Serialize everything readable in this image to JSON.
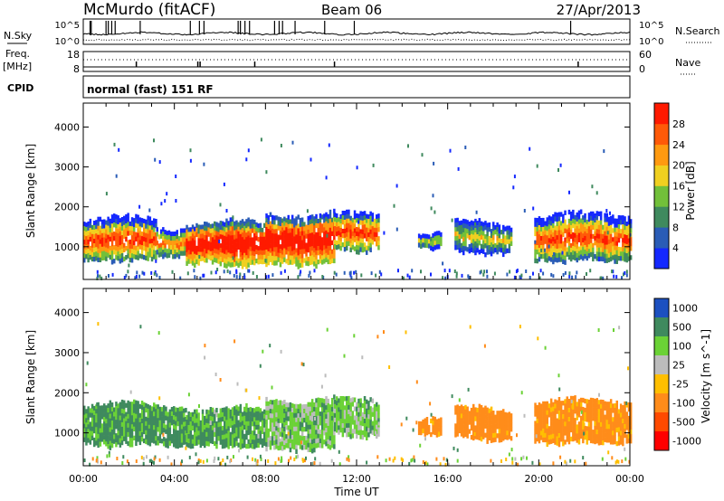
{
  "header": {
    "station": "McMurdo (fitACF)",
    "beam": "Beam 06",
    "date": "27/Apr/2013"
  },
  "mini_panels": {
    "nsky_label": "N.Sky",
    "nsearch_label": "N.Search",
    "noise_ticks": [
      "10^5",
      "10^0"
    ],
    "freq_label": "Freq.",
    "freq_unit": "[MHz]",
    "freq_ticks": [
      "18",
      "8"
    ],
    "nave_label": "Nave",
    "nave_ticks": [
      "60",
      "0"
    ],
    "cpid_label": "CPID",
    "cpid_text": "normal (fast) 151 RF"
  },
  "colors": {
    "power": [
      "#1428ff",
      "#2a5cb6",
      "#3f8a5e",
      "#72c03a",
      "#f0d020",
      "#ff9a10",
      "#ff5a08",
      "#ff1a00"
    ],
    "velocity": [
      "#ff0000",
      "#ff4a00",
      "#ff8c1a",
      "#ffbf00",
      "#bcbcbc",
      "#6bd236",
      "#3f8a5e",
      "#1c50c0"
    ]
  },
  "chart_data": [
    {
      "type": "heatmap",
      "title": "",
      "xlabel": "",
      "ylabel": "Slant Range [km]",
      "x_ticks": [
        "00:00",
        "04:00",
        "08:00",
        "12:00",
        "16:00",
        "20:00",
        "00:00"
      ],
      "x_range_hours": [
        0,
        24
      ],
      "ylim": [
        180,
        4600
      ],
      "y_ticks": [
        1000,
        2000,
        3000,
        4000
      ],
      "colorbar": {
        "label": "Power [dB]",
        "ticks": [
          4,
          8,
          12,
          16,
          20,
          24,
          28
        ],
        "range": [
          0,
          32
        ]
      },
      "echo_regions": [
        {
          "t_start": 0.0,
          "t_end": 3.2,
          "range_low_km": 700,
          "range_high_km": 1700,
          "typical_dB": 18,
          "peak_dB": 26
        },
        {
          "t_start": 3.2,
          "t_end": 4.5,
          "range_low_km": 850,
          "range_high_km": 1500,
          "typical_dB": 16,
          "peak_dB": 22
        },
        {
          "t_start": 4.5,
          "t_end": 8.0,
          "range_low_km": 600,
          "range_high_km": 1600,
          "typical_dB": 24,
          "peak_dB": 32
        },
        {
          "t_start": 8.0,
          "t_end": 11.0,
          "range_low_km": 600,
          "range_high_km": 1850,
          "typical_dB": 23,
          "peak_dB": 32
        },
        {
          "t_start": 11.0,
          "t_end": 13.0,
          "range_low_km": 950,
          "range_high_km": 1800,
          "typical_dB": 18,
          "peak_dB": 26
        },
        {
          "t_start": 14.7,
          "t_end": 15.7,
          "range_low_km": 1050,
          "range_high_km": 1400,
          "typical_dB": 10,
          "peak_dB": 16
        },
        {
          "t_start": 16.3,
          "t_end": 18.8,
          "range_low_km": 900,
          "range_high_km": 1600,
          "typical_dB": 10,
          "peak_dB": 16
        },
        {
          "t_start": 19.8,
          "t_end": 24.0,
          "range_low_km": 700,
          "range_high_km": 1800,
          "typical_dB": 16,
          "peak_dB": 26
        }
      ]
    },
    {
      "type": "heatmap",
      "title": "",
      "xlabel": "Time UT",
      "ylabel": "Slant Range [km]",
      "x_ticks": [
        "00:00",
        "04:00",
        "08:00",
        "12:00",
        "16:00",
        "20:00",
        "00:00"
      ],
      "x_range_hours": [
        0,
        24
      ],
      "ylim": [
        180,
        4600
      ],
      "y_ticks": [
        1000,
        2000,
        3000,
        4000
      ],
      "colorbar": {
        "label": "Velocity [m s^-1]",
        "ticks": [
          "1000",
          "500",
          "100",
          "25",
          "-25",
          "-100",
          "-500",
          "-1000"
        ]
      },
      "echo_regions": [
        {
          "t_start": 0.0,
          "t_end": 4.5,
          "range_low_km": 750,
          "range_high_km": 1700,
          "typical_velocity_ms": 150
        },
        {
          "t_start": 4.5,
          "t_end": 8.0,
          "range_low_km": 700,
          "range_high_km": 1600,
          "typical_velocity_ms": 120
        },
        {
          "t_start": 8.0,
          "t_end": 11.0,
          "range_low_km": 650,
          "range_high_km": 1850,
          "typical_velocity_ms": 60
        },
        {
          "t_start": 11.0,
          "t_end": 13.0,
          "range_low_km": 1000,
          "range_high_km": 1800,
          "typical_velocity_ms": 60
        },
        {
          "t_start": 14.7,
          "t_end": 15.7,
          "range_low_km": 1050,
          "range_high_km": 1400,
          "typical_velocity_ms": -200
        },
        {
          "t_start": 16.3,
          "t_end": 18.8,
          "range_low_km": 900,
          "range_high_km": 1600,
          "typical_velocity_ms": -250
        },
        {
          "t_start": 19.8,
          "t_end": 24.0,
          "range_low_km": 800,
          "range_high_km": 1800,
          "typical_velocity_ms": -200
        }
      ]
    }
  ]
}
